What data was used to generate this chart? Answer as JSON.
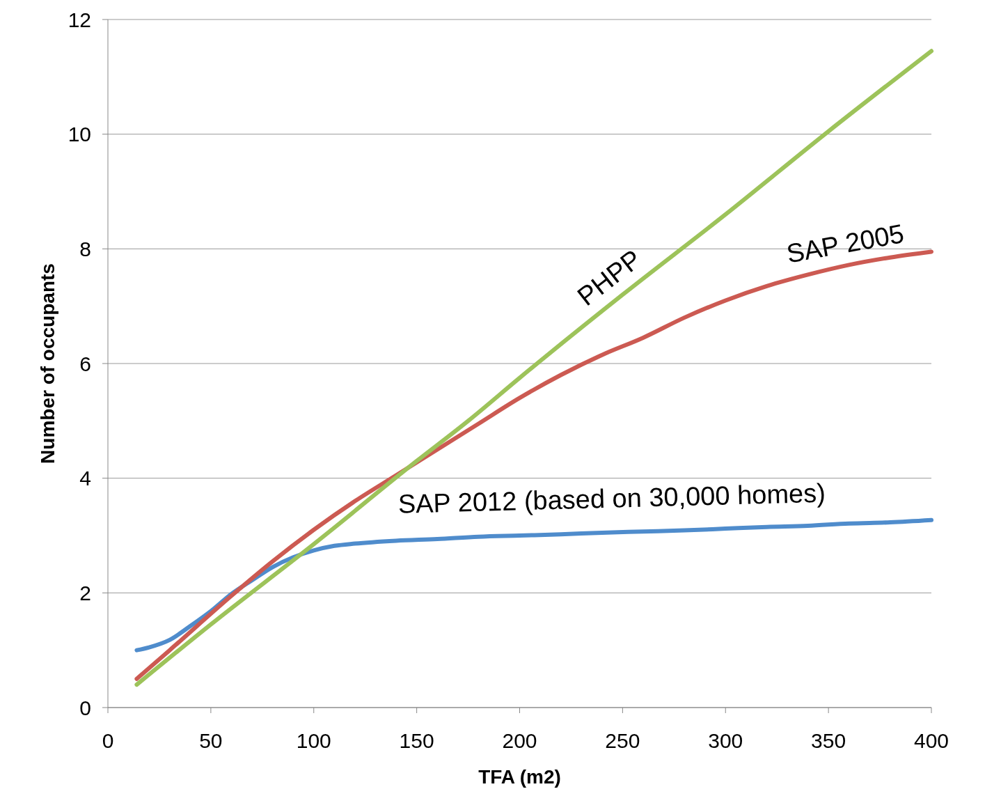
{
  "chart_data": {
    "type": "line",
    "xlabel": "TFA (m2)",
    "ylabel": "Number of occupants",
    "xlim": [
      0,
      400
    ],
    "ylim": [
      0,
      12
    ],
    "xticks": [
      0,
      50,
      100,
      150,
      200,
      250,
      300,
      350,
      400
    ],
    "yticks": [
      0,
      2,
      4,
      6,
      8,
      10,
      12
    ],
    "grid": "y",
    "marker": "none",
    "line_style": "solid",
    "series": [
      {
        "name": "SAP 2012 (based on 30,000 homes)",
        "color": "#4f8ccc",
        "x": [
          14,
          20,
          30,
          40,
          50,
          60,
          70,
          80,
          90,
          100,
          110,
          120,
          140,
          160,
          180,
          200,
          220,
          240,
          260,
          280,
          300,
          320,
          340,
          360,
          380,
          400
        ],
        "values": [
          1.0,
          1.05,
          1.18,
          1.42,
          1.68,
          1.98,
          2.22,
          2.45,
          2.62,
          2.74,
          2.82,
          2.86,
          2.91,
          2.94,
          2.98,
          3.0,
          3.02,
          3.05,
          3.07,
          3.09,
          3.12,
          3.15,
          3.17,
          3.21,
          3.23,
          3.27
        ]
      },
      {
        "name": "SAP 2005",
        "color": "#cc5a52",
        "x": [
          14,
          30,
          60,
          80,
          100,
          120,
          140,
          160,
          180,
          200,
          220,
          240,
          260,
          280,
          300,
          320,
          340,
          360,
          380,
          400
        ],
        "values": [
          0.5,
          1.0,
          1.95,
          2.55,
          3.1,
          3.6,
          4.05,
          4.5,
          4.95,
          5.4,
          5.8,
          6.15,
          6.45,
          6.8,
          7.1,
          7.35,
          7.55,
          7.72,
          7.85,
          7.95
        ]
      },
      {
        "name": "PHPP",
        "color": "#9dc35a",
        "x": [
          14,
          50,
          100,
          150,
          175,
          200,
          250,
          300,
          350,
          400
        ],
        "values": [
          0.4,
          1.45,
          2.85,
          4.3,
          5.0,
          5.75,
          7.2,
          8.6,
          10.05,
          11.45
        ]
      }
    ]
  }
}
